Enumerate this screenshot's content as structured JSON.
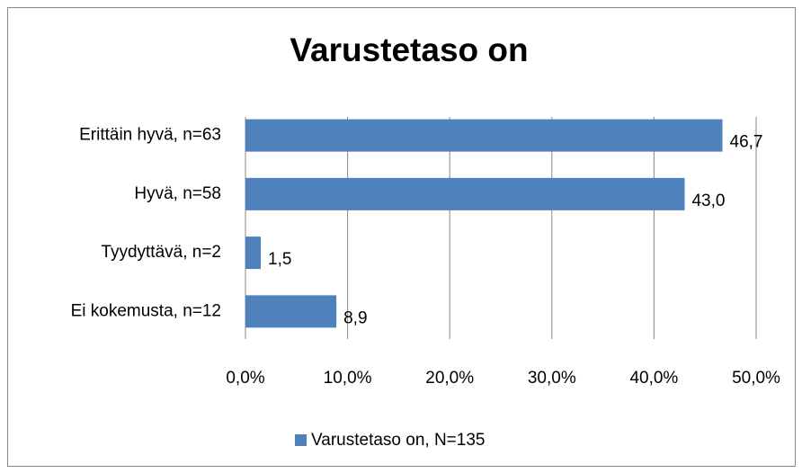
{
  "chart_data": {
    "type": "bar",
    "orientation": "horizontal",
    "title": "Varustetaso on",
    "categories": [
      "Erittäin hyvä, n=63",
      "Hyvä, n=58",
      "Tyydyttävä, n=2",
      "Ei kokemusta, n=12"
    ],
    "series": [
      {
        "name": "Varustetaso on, N=135",
        "color": "#4f81bd",
        "values": [
          46.7,
          43.0,
          1.5,
          8.9
        ],
        "value_labels": [
          "46,7",
          "43,0",
          "1,5",
          "8,9"
        ]
      }
    ],
    "xlim": [
      0,
      50
    ],
    "xticks": [
      {
        "value": 0,
        "label": "0,0%"
      },
      {
        "value": 10,
        "label": "10,0%"
      },
      {
        "value": 20,
        "label": "20,0%"
      },
      {
        "value": 30,
        "label": "30,0%"
      },
      {
        "value": 40,
        "label": "40,0%"
      },
      {
        "value": 50,
        "label": "50,0%"
      }
    ],
    "grid": true,
    "legend": "bottom"
  }
}
